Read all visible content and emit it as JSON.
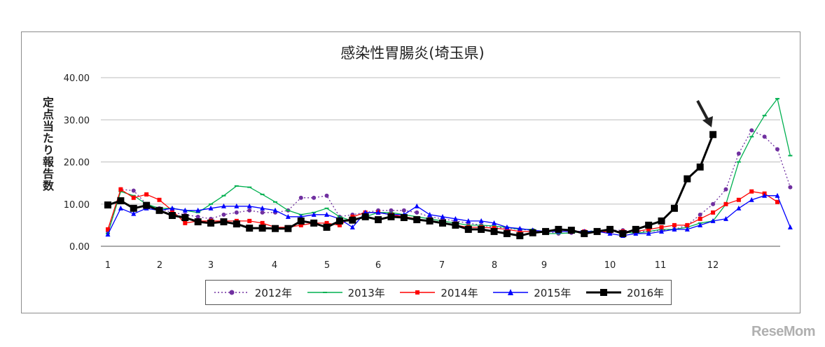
{
  "chart_data": {
    "type": "line",
    "title": "感染性胃腸炎(埼玉県)",
    "ylabel": "定点当たり報告数",
    "ylim": [
      0,
      40
    ],
    "yticks": [
      "0.00",
      "10.00",
      "20.00",
      "30.00",
      "40.00"
    ],
    "xticks": [
      "1",
      "2",
      "3",
      "4",
      "5",
      "6",
      "7",
      "8",
      "9",
      "10",
      "11",
      "12"
    ],
    "xlim": [
      1,
      53
    ],
    "legend_position": "bottom",
    "grid": "horizontal",
    "series": [
      {
        "name": "2012年",
        "color": "#7030a0",
        "style": "dotted",
        "marker": "circle",
        "values": [
          3.5,
          13.5,
          13.2,
          10,
          9,
          8,
          7.5,
          7,
          6.5,
          7.5,
          8,
          8.5,
          8,
          8,
          8.5,
          11.5,
          11.5,
          12,
          7,
          7.5,
          8,
          8.5,
          8.5,
          8.5,
          8,
          7,
          6.5,
          6,
          5.5,
          5,
          4.5,
          4.3,
          4,
          3.8,
          3.5,
          3,
          3.2,
          3.5,
          3.7,
          3.8,
          3.8,
          3.5,
          3.5,
          3.8,
          4,
          5,
          7.5,
          10,
          13.5,
          22,
          27.5,
          26,
          23,
          14
        ]
      },
      {
        "name": "2013年",
        "color": "#00b050",
        "style": "solid",
        "marker": "dash",
        "values": [
          3,
          13,
          12,
          10,
          9,
          9,
          8.5,
          8,
          10,
          12,
          14.3,
          14,
          12.3,
          10.5,
          8.5,
          7.5,
          8,
          9,
          7,
          6,
          7,
          8,
          8,
          7.5,
          7,
          6.5,
          6,
          5.5,
          5,
          5,
          4.8,
          4.5,
          4,
          4,
          3,
          3,
          3.2,
          3.5,
          3.6,
          3.5,
          3.5,
          3,
          3.5,
          4,
          4,
          4.5,
          5.5,
          6,
          10,
          20,
          26,
          31,
          35,
          21.5
        ]
      },
      {
        "name": "2014年",
        "color": "#ff0000",
        "style": "solid",
        "marker": "square",
        "values": [
          4,
          13.5,
          11.5,
          12.3,
          11,
          8.5,
          5.5,
          6,
          6,
          6,
          6,
          6,
          5.5,
          4.5,
          4.5,
          5,
          5.5,
          5.5,
          5,
          7,
          8,
          8,
          7.5,
          7,
          6.5,
          6,
          5.5,
          5,
          4.5,
          4.5,
          4.3,
          4,
          3.5,
          3.5,
          3.5,
          3.5,
          3.5,
          3.5,
          3.3,
          3.5,
          3.5,
          3.5,
          4,
          4.5,
          5,
          5,
          6.5,
          8,
          10,
          11,
          13,
          12.5,
          10.5
        ]
      },
      {
        "name": "2015年",
        "color": "#0000ff",
        "style": "solid",
        "marker": "triangle",
        "values": [
          2.8,
          9,
          7.7,
          9,
          8.5,
          9,
          8.5,
          8.5,
          9,
          9.5,
          9.5,
          9.5,
          9,
          8.5,
          7,
          7,
          7.5,
          7.5,
          6.5,
          4.5,
          8,
          8,
          7.5,
          7.5,
          9.5,
          7.5,
          7,
          6.5,
          6,
          6,
          5.5,
          4.5,
          4.2,
          3.8,
          3.5,
          3.5,
          3.5,
          3.5,
          3.5,
          3,
          2.5,
          3,
          3,
          3.5,
          4,
          4,
          5,
          6,
          6.5,
          9,
          11,
          12,
          12,
          4.5
        ]
      },
      {
        "name": "2016年",
        "color": "#000000",
        "style": "solid",
        "marker": "square-large",
        "values": [
          9.8,
          10.8,
          9,
          9.7,
          8.5,
          7.3,
          6.8,
          5.8,
          5.5,
          5.8,
          5.3,
          4.3,
          4.3,
          4.2,
          4.2,
          6,
          5.5,
          4.5,
          6,
          6.2,
          7,
          6.3,
          7,
          6.8,
          6.3,
          6,
          5.5,
          5,
          4,
          4,
          3.5,
          3,
          2.5,
          3.2,
          3.5,
          4,
          3.8,
          3,
          3.5,
          4,
          3,
          4,
          5,
          6,
          9,
          16,
          18.8,
          26.5
        ]
      }
    ]
  }
}
